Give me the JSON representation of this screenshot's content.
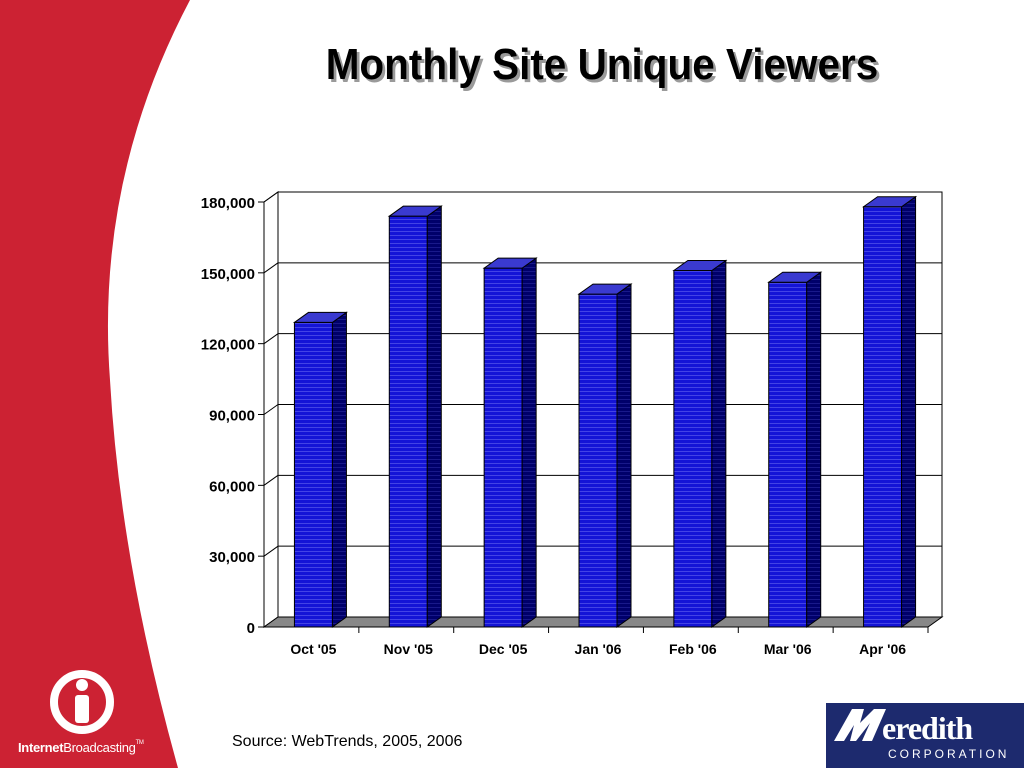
{
  "slide": {
    "title": "Monthly Site Unique Viewers",
    "source": "Source: WebTrends, 2005, 2006"
  },
  "logos": {
    "internet_broadcasting": {
      "bold": "Internet",
      "regular": "Broadcasting",
      "tm": "TM"
    },
    "meredith": {
      "name": "Meredith",
      "sub": "CORPORATION"
    }
  },
  "colors": {
    "background_swoosh": "#cc2233",
    "bar_front": "#1414d6",
    "bar_side": "#00006a",
    "bar_top": "#3a3ad0",
    "floor": "#888888",
    "meredith_box": "#1d2a6e"
  },
  "chart_data": {
    "type": "bar",
    "title": "Monthly Site Unique Viewers",
    "categories": [
      "Oct '05",
      "Nov '05",
      "Dec '05",
      "Jan '06",
      "Feb '06",
      "Mar '06",
      "Apr '06"
    ],
    "values": [
      129000,
      174000,
      152000,
      141000,
      151000,
      146000,
      178000
    ],
    "ylim": [
      0,
      180000
    ],
    "yticks": [
      0,
      30000,
      60000,
      90000,
      120000,
      150000,
      180000
    ],
    "ytick_labels": [
      "0",
      "30,000",
      "60,000",
      "90,000",
      "120,000",
      "150,000",
      "180,000"
    ],
    "grid": true,
    "style": "3d",
    "xlabel": "",
    "ylabel": ""
  }
}
